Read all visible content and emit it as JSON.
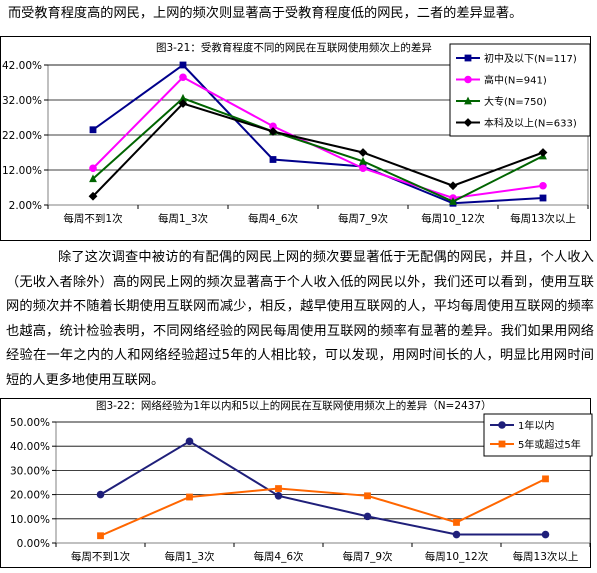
{
  "intro_text": "而受教育程度高的网民，上网的频次则显著高于受教育程度低的网民，二者的差异显著。",
  "body_text": "除了这次调查中被访的有配偶的网民上网的频次要显著低于无配偶的网民，并且，个人收入（无收入者除外）高的网民上网的频次显著高于个人收入低的网民以外，我们还可以看到，使用互联网的频次并不随着长期使用互联网而减少，相反，越早使用互联网的人，平均每周使用互联网的频率也越高，统计检验表明，不同网络经验的网民每周使用互联网的频率有显著的差异。我们如果用网络经验在一年之内的人和网络经验超过5年的人相比较，可以发现，用网时间长的人，明显比用网时间短的人更多地使用互联网。",
  "chart_data": [
    {
      "type": "line",
      "title": "图3-21：受教育程度不同的网民在互联网使用频次上的差异",
      "categories": [
        "每周不到1次",
        "每周1_3次",
        "每周4_6次",
        "每周7_9次",
        "每周10_12次",
        "每周13次以上"
      ],
      "ylim": [
        2,
        42
      ],
      "yticks": [
        "2.00%",
        "12.00%",
        "22.00%",
        "32.00%",
        "42.00%"
      ],
      "ytick_values": [
        2,
        12,
        22,
        32,
        42
      ],
      "legend_position": "top-right",
      "grid": true,
      "series": [
        {
          "name": "初中及以下(N=117)",
          "values": [
            23.5,
            42.0,
            15.0,
            13.0,
            2.5,
            4.0
          ],
          "color": "#00008B",
          "marker": "square"
        },
        {
          "name": "高中(N=941)",
          "values": [
            12.5,
            38.5,
            24.5,
            12.5,
            4.0,
            7.5
          ],
          "color": "#FF00FF",
          "marker": "circle"
        },
        {
          "name": "大专(N=750)",
          "values": [
            9.5,
            32.5,
            23.0,
            14.5,
            3.0,
            16.0
          ],
          "color": "#006400",
          "marker": "triangle"
        },
        {
          "name": "本科及以上(N=633)",
          "values": [
            4.5,
            31.0,
            23.0,
            17.0,
            7.5,
            17.0
          ],
          "color": "#000000",
          "marker": "diamond"
        }
      ]
    },
    {
      "type": "line",
      "title": "图3-22：网络经验为1年以内和5以上的网民在互联网使用频次上的差异（N=2437）",
      "categories": [
        "每周不到1次",
        "每周1_3次",
        "每周4_6次",
        "每周7_9次",
        "每周10_12次",
        "每周13次以上"
      ],
      "ylim": [
        0,
        50
      ],
      "yticks": [
        "0.00%",
        "10.00%",
        "20.00%",
        "30.00%",
        "40.00%",
        "50.00%"
      ],
      "ytick_values": [
        0,
        10,
        20,
        30,
        40,
        50
      ],
      "legend_position": "top-right",
      "grid": true,
      "series": [
        {
          "name": "1年以内",
          "values": [
            20.0,
            42.0,
            19.5,
            11.0,
            3.5,
            3.5
          ],
          "color": "#1F1F7A",
          "marker": "circle"
        },
        {
          "name": "5年或超过5年",
          "values": [
            3.0,
            19.0,
            22.5,
            19.5,
            8.5,
            26.5
          ],
          "color": "#FF6600",
          "marker": "square"
        }
      ]
    }
  ]
}
